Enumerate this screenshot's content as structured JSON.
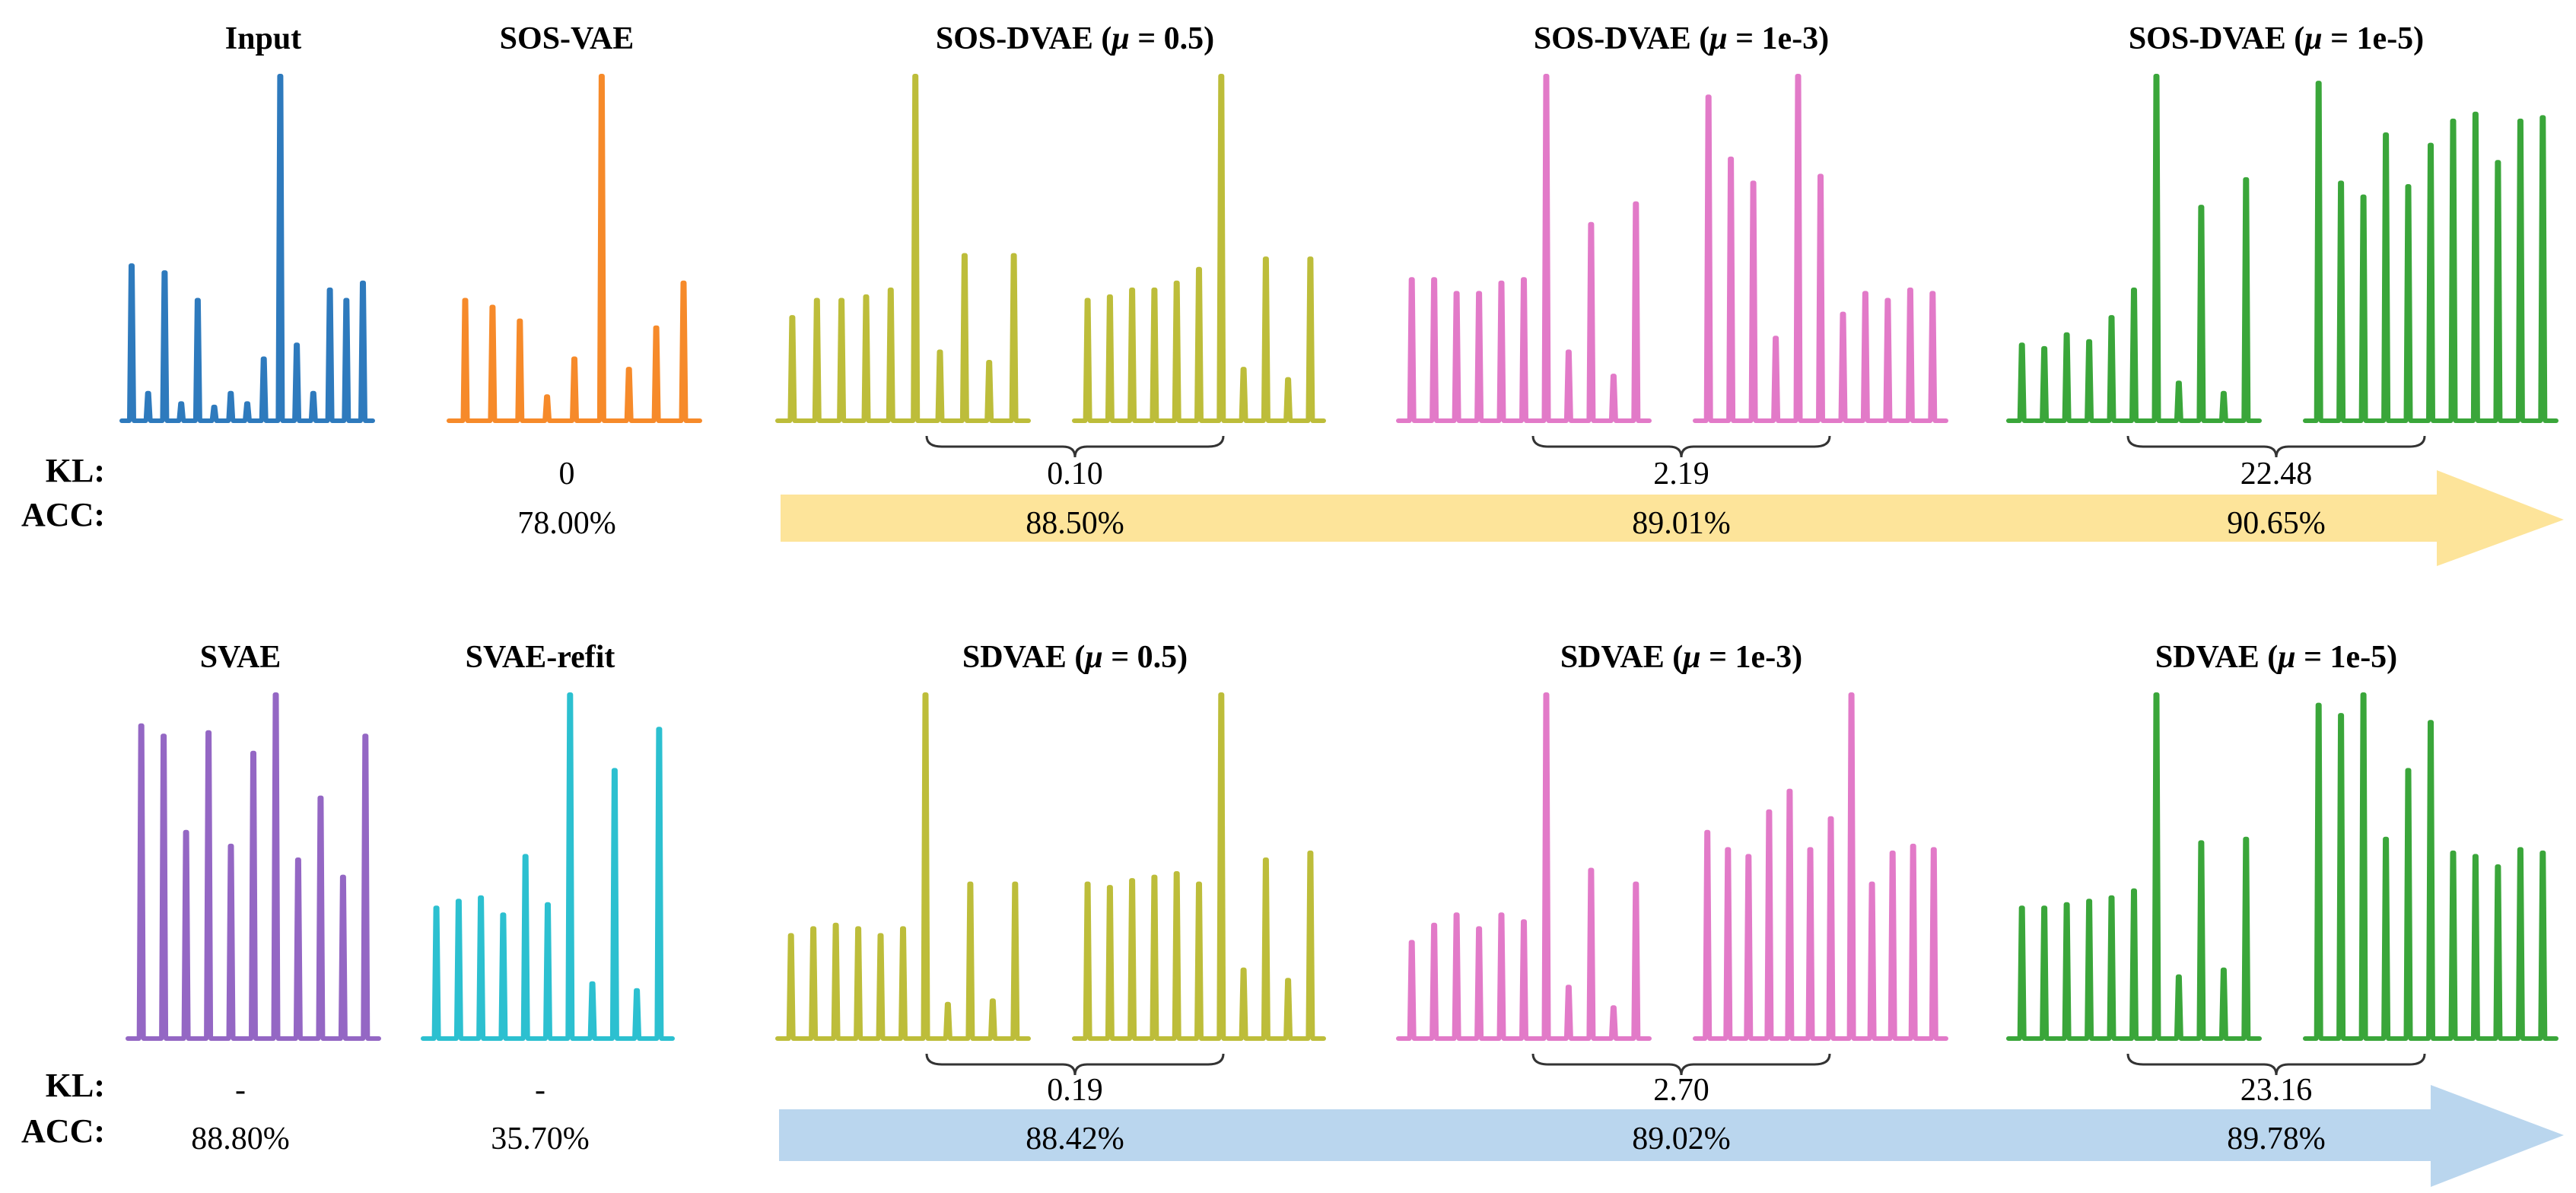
{
  "row_labels": {
    "kl": "KL:",
    "acc": "ACC:"
  },
  "colors": {
    "input": "#2e7abd",
    "sos_vae": "#f68a2a",
    "dvae": "#bdbd3a",
    "mu_1e3": "#e27ac8",
    "mu_1e5": "#3aa63a",
    "svae": "#9467c4",
    "svae_refit": "#2cc0d0",
    "arrow_top": "#fde49a",
    "arrow_bottom": "#bad6ee"
  },
  "rows": [
    {
      "id": "top",
      "panels": [
        {
          "id": "input",
          "title": "Input",
          "color": "input",
          "kl": "",
          "acc": "",
          "segments": [
            [
              0.45,
              0.08,
              0.43,
              0.05,
              0.35,
              0.04,
              0.08,
              0.05,
              0.18,
              1.0,
              0.22,
              0.08,
              0.38,
              0.35,
              0.4
            ]
          ]
        },
        {
          "id": "sos-vae",
          "title": "SOS-VAE",
          "color": "sos_vae",
          "kl": "0",
          "acc": "78.00%",
          "segments": [
            [
              0.35,
              0.33,
              0.29,
              0.07,
              0.18,
              1.0,
              0.15,
              0.27,
              0.4
            ]
          ]
        },
        {
          "id": "sos-dvae-05",
          "title_pre": "SOS-DVAE (",
          "title_mu": "μ",
          "title_post": " = 0.5)",
          "color": "dvae",
          "kl": "0.10",
          "acc": "88.50%",
          "segments": [
            [
              0.3,
              0.35,
              0.35,
              0.36,
              0.38,
              1.0,
              0.2,
              0.48,
              0.17,
              0.48
            ],
            [
              0.35,
              0.36,
              0.38,
              0.38,
              0.4,
              0.44,
              1.0,
              0.15,
              0.47,
              0.12,
              0.47
            ]
          ]
        },
        {
          "id": "sos-dvae-1e3",
          "title_pre": "SOS-DVAE (",
          "title_mu": "μ",
          "title_post": " = 1e-3)",
          "color": "mu_1e3",
          "kl": "2.19",
          "acc": "89.01%",
          "segments": [
            [
              0.41,
              0.41,
              0.37,
              0.37,
              0.4,
              0.41,
              1.0,
              0.2,
              0.57,
              0.13,
              0.63
            ],
            [
              0.94,
              0.76,
              0.69,
              0.24,
              1.0,
              0.71,
              0.31,
              0.37,
              0.35,
              0.38,
              0.37
            ]
          ]
        },
        {
          "id": "sos-dvae-1e5",
          "title_pre": "SOS-DVAE (",
          "title_mu": "μ",
          "title_post": " = 1e-5)",
          "color": "mu_1e5",
          "kl": "22.48",
          "acc": "90.65%",
          "segments": [
            [
              0.22,
              0.21,
              0.25,
              0.23,
              0.3,
              0.38,
              1.0,
              0.11,
              0.62,
              0.08,
              0.7
            ],
            [
              0.98,
              0.69,
              0.65,
              0.83,
              0.68,
              0.8,
              0.87,
              0.89,
              0.75,
              0.87,
              0.88
            ]
          ]
        }
      ]
    },
    {
      "id": "bottom",
      "panels": [
        {
          "id": "svae",
          "title": "SVAE",
          "color": "svae",
          "kl": "-",
          "acc": "88.80%",
          "segments": [
            [
              0.91,
              0.88,
              0.6,
              0.89,
              0.56,
              0.83,
              1.0,
              0.52,
              0.7,
              0.47,
              0.88
            ]
          ]
        },
        {
          "id": "svae-refit",
          "title": "SVAE-refit",
          "color": "svae_refit",
          "kl": "-",
          "acc": "35.70%",
          "segments": [
            [
              0.38,
              0.4,
              0.41,
              0.36,
              0.53,
              0.39,
              1.0,
              0.16,
              0.78,
              0.14,
              0.9
            ]
          ]
        },
        {
          "id": "sdvae-05",
          "title_pre": "SDVAE (",
          "title_mu": "μ",
          "title_post": " = 0.5)",
          "color": "dvae",
          "kl": "0.19",
          "acc": "88.42%",
          "segments": [
            [
              0.3,
              0.32,
              0.33,
              0.32,
              0.3,
              0.32,
              1.0,
              0.1,
              0.45,
              0.11,
              0.45
            ],
            [
              0.45,
              0.44,
              0.46,
              0.47,
              0.48,
              0.45,
              1.0,
              0.2,
              0.52,
              0.17,
              0.54
            ]
          ]
        },
        {
          "id": "sdvae-1e3",
          "title_pre": "SDVAE (",
          "title_mu": "μ",
          "title_post": " = 1e-3)",
          "color": "mu_1e3",
          "kl": "2.70",
          "acc": "89.02%",
          "segments": [
            [
              0.28,
              0.33,
              0.36,
              0.32,
              0.36,
              0.34,
              1.0,
              0.15,
              0.49,
              0.09,
              0.45
            ],
            [
              0.6,
              0.55,
              0.53,
              0.66,
              0.72,
              0.55,
              0.64,
              1.0,
              0.45,
              0.54,
              0.56,
              0.55
            ]
          ]
        },
        {
          "id": "sdvae-1e5",
          "title_pre": "SDVAE (",
          "title_mu": "μ",
          "title_post": " = 1e-5)",
          "color": "mu_1e5",
          "kl": "23.16",
          "acc": "89.78%",
          "segments": [
            [
              0.38,
              0.38,
              0.39,
              0.4,
              0.41,
              0.43,
              1.0,
              0.18,
              0.57,
              0.2,
              0.58
            ],
            [
              0.97,
              0.94,
              1.0,
              0.58,
              0.78,
              0.92,
              0.54,
              0.53,
              0.5,
              0.55,
              0.54
            ]
          ]
        }
      ]
    }
  ]
}
